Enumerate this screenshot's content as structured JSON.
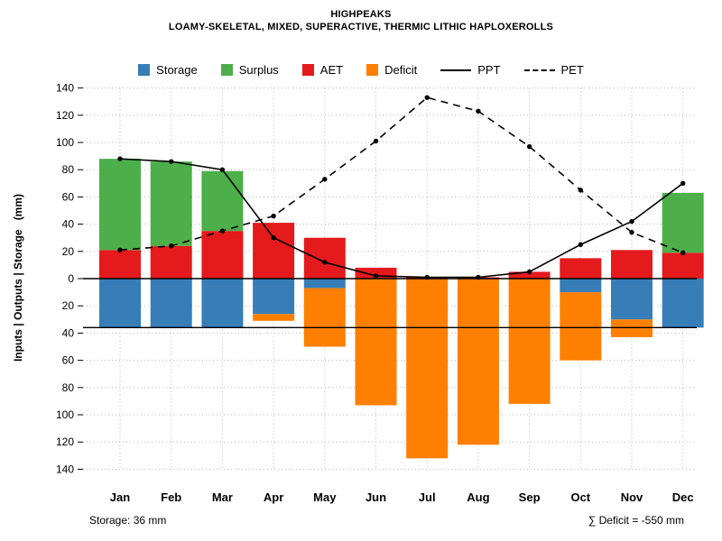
{
  "chart_data": {
    "type": "bar",
    "title": "HIGHPEAKS",
    "subtitle": "LOAMY-SKELETAL, MIXED, SUPERACTIVE, THERMIC LITHIC HAPLOXEROLLS",
    "ylabel": "Inputs | Outputs | Storage   (mm)",
    "ylim": [
      -140,
      140
    ],
    "ytick_step": 20,
    "grid": true,
    "legend_position": "top",
    "categories": [
      "Jan",
      "Feb",
      "Mar",
      "Apr",
      "May",
      "Jun",
      "Jul",
      "Aug",
      "Sep",
      "Oct",
      "Nov",
      "Dec"
    ],
    "series": [
      {
        "name": "Storage",
        "type": "bar-down",
        "color": "#377eb8",
        "values": [
          36,
          36,
          36,
          26,
          7,
          0,
          0,
          0,
          0,
          10,
          30,
          36
        ]
      },
      {
        "name": "Surplus",
        "type": "bar-up",
        "color": "#4daf4a",
        "values": [
          67,
          62,
          44,
          0,
          0,
          0,
          0,
          0,
          0,
          0,
          0,
          44
        ]
      },
      {
        "name": "AET",
        "type": "bar-up",
        "color": "#e41a1c",
        "values": [
          21,
          24,
          35,
          41,
          30,
          8,
          1,
          1,
          5,
          15,
          21,
          19
        ]
      },
      {
        "name": "Deficit",
        "type": "bar-down",
        "color": "#ff7f00",
        "values": [
          0,
          0,
          0,
          5,
          43,
          93,
          132,
          122,
          92,
          50,
          13,
          0
        ]
      },
      {
        "name": "PPT",
        "type": "line-solid",
        "color": "#000000",
        "values": [
          88,
          86,
          80,
          30,
          12,
          2,
          1,
          1,
          5,
          25,
          42,
          70
        ]
      },
      {
        "name": "PET",
        "type": "line-dashed",
        "color": "#000000",
        "values": [
          21,
          24,
          35,
          46,
          73,
          101,
          133,
          123,
          97,
          65,
          34,
          19
        ]
      }
    ],
    "storage_capacity_mm": 36,
    "annotations": {
      "storage": "Storage: 36 mm",
      "deficit_total": "∑ Deficit = -550 mm"
    }
  }
}
